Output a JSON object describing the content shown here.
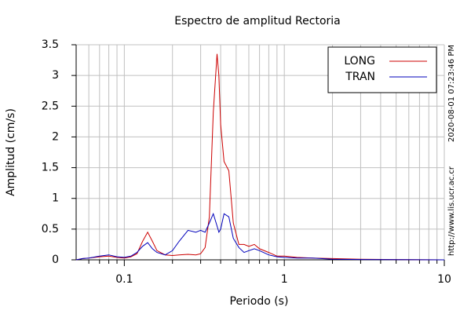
{
  "chart_data": {
    "type": "line",
    "title": "Espectro de amplitud Rectoria",
    "x_label": "Periodo (s)",
    "y_label": "Amplitud (cm/s)",
    "timestamp": "2020-08-01 07:23:46 PM",
    "source": "http://www.lis.ucr.ac.cr",
    "x_log": true,
    "grid": true,
    "legend_position": "upper right",
    "xlim": [
      0.05,
      10
    ],
    "ylim": [
      0,
      3.5
    ],
    "xticks": [
      0.1,
      1,
      10
    ],
    "x_minor_ticks": [
      0.06,
      0.07,
      0.08,
      0.09,
      0.2,
      0.3,
      0.4,
      0.5,
      0.6,
      0.7,
      0.8,
      0.9,
      2,
      3,
      4,
      5,
      6,
      7,
      8,
      9
    ],
    "yticks": [
      0,
      0.5,
      1,
      1.5,
      2,
      2.5,
      3,
      3.5
    ],
    "x": [
      0.05,
      0.055,
      0.06,
      0.07,
      0.08,
      0.09,
      0.1,
      0.11,
      0.12,
      0.13,
      0.14,
      0.15,
      0.16,
      0.18,
      0.2,
      0.22,
      0.25,
      0.28,
      0.3,
      0.32,
      0.34,
      0.36,
      0.38,
      0.39,
      0.4,
      0.42,
      0.45,
      0.48,
      0.52,
      0.56,
      0.6,
      0.65,
      0.7,
      0.8,
      0.9,
      1,
      1.2,
      1.5,
      2,
      3,
      5,
      10
    ],
    "series": [
      {
        "name": "LONG",
        "color": "#cc0000",
        "values": [
          0,
          0.02,
          0.03,
          0.05,
          0.06,
          0.04,
          0.03,
          0.05,
          0.1,
          0.3,
          0.45,
          0.3,
          0.15,
          0.08,
          0.07,
          0.08,
          0.09,
          0.08,
          0.1,
          0.2,
          0.7,
          2.4,
          3.35,
          3.0,
          2.2,
          1.6,
          1.45,
          0.6,
          0.25,
          0.25,
          0.22,
          0.25,
          0.18,
          0.12,
          0.06,
          0.06,
          0.04,
          0.03,
          0.02,
          0.01,
          0.005,
          0
        ]
      },
      {
        "name": "TRAN",
        "color": "#0000bb",
        "values": [
          0,
          0.02,
          0.03,
          0.06,
          0.08,
          0.05,
          0.04,
          0.06,
          0.12,
          0.22,
          0.28,
          0.18,
          0.12,
          0.08,
          0.15,
          0.3,
          0.48,
          0.45,
          0.48,
          0.45,
          0.6,
          0.75,
          0.55,
          0.45,
          0.5,
          0.75,
          0.7,
          0.35,
          0.2,
          0.12,
          0.15,
          0.18,
          0.15,
          0.08,
          0.05,
          0.04,
          0.03,
          0.03,
          0.01,
          0.005,
          0.003,
          0
        ]
      }
    ]
  }
}
